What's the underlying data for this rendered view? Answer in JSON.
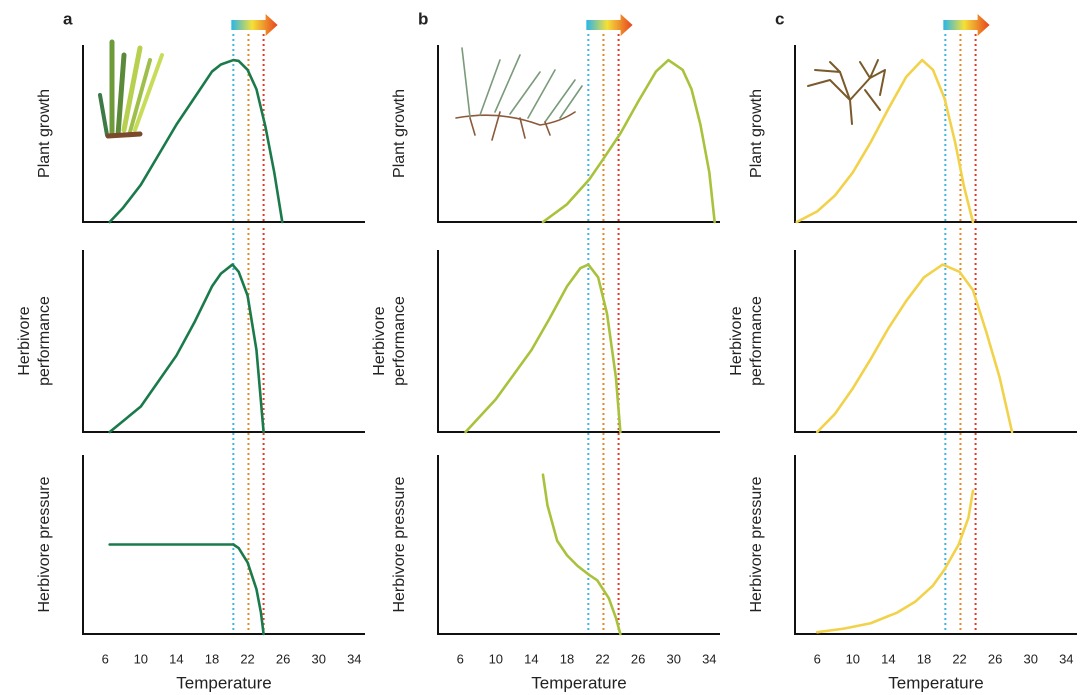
{
  "chart_data": [
    {
      "type": "line",
      "panel_label": "a",
      "ylabel": [
        "Plant growth"
      ],
      "xlim": [
        3.5,
        35.2
      ],
      "ylim": [
        0,
        100
      ],
      "color": "#1a7a4a",
      "reference_lines": [
        {
          "value": 20.4,
          "color": "#3fb4e0"
        },
        {
          "value": 22.1,
          "color": "#e08a2a"
        },
        {
          "value": 23.8,
          "color": "#e03a2a"
        }
      ],
      "x": [
        6.5,
        8,
        10,
        12,
        14,
        16,
        18,
        19,
        20.4,
        21,
        22,
        23,
        24,
        25,
        25.9
      ],
      "values": [
        0,
        8,
        21,
        38,
        55,
        70,
        85,
        89,
        91.5,
        91,
        86,
        75,
        54,
        28,
        0
      ]
    },
    {
      "type": "line",
      "ylabel": [
        "Herbivore",
        "performance"
      ],
      "xlim": [
        3.5,
        35.2
      ],
      "ylim": [
        0,
        100
      ],
      "color": "#1a7a4a",
      "reference_lines": [
        {
          "value": 20.4,
          "color": "#3fb4e0"
        },
        {
          "value": 22.1,
          "color": "#e08a2a"
        },
        {
          "value": 23.8,
          "color": "#e03a2a"
        }
      ],
      "x": [
        6.5,
        10,
        14,
        16,
        18,
        19,
        20.3,
        21,
        22,
        23,
        23.8
      ],
      "values": [
        0,
        14,
        42,
        60,
        80,
        87,
        92,
        88,
        75,
        45,
        0
      ]
    },
    {
      "type": "line",
      "ylabel": [
        "Herbivore pressure"
      ],
      "xlabel": "Temperature",
      "xticks": [
        6,
        10,
        14,
        18,
        22,
        26,
        30,
        34
      ],
      "xlim": [
        3.5,
        35.2
      ],
      "ylim": [
        0,
        100
      ],
      "color": "#1a7a4a",
      "reference_lines": [
        {
          "value": 20.4,
          "color": "#3fb4e0"
        },
        {
          "value": 22.1,
          "color": "#e08a2a"
        },
        {
          "value": 23.8,
          "color": "#e03a2a"
        }
      ],
      "x": [
        6.5,
        20.4,
        21,
        22,
        23,
        23.5,
        23.8
      ],
      "values": [
        50,
        50,
        48,
        40,
        25,
        12,
        0
      ]
    },
    {
      "type": "line",
      "panel_label": "b",
      "ylabel": [
        "Plant growth"
      ],
      "xlim": [
        3.5,
        35.2
      ],
      "ylim": [
        0,
        100
      ],
      "color": "#a8c23c",
      "reference_lines": [
        {
          "value": 20.4,
          "color": "#3fb4e0"
        },
        {
          "value": 22.1,
          "color": "#e08a2a"
        },
        {
          "value": 23.8,
          "color": "#e03a2a"
        }
      ],
      "x": [
        15.3,
        18,
        20.5,
        22,
        24,
        26,
        28,
        29.4,
        31,
        32,
        33,
        34,
        34.6
      ],
      "values": [
        0,
        10,
        24,
        35,
        50,
        68,
        85,
        91.5,
        86,
        75,
        55,
        28,
        0
      ]
    },
    {
      "type": "line",
      "ylabel": [
        "Herbivore",
        "performance"
      ],
      "xlim": [
        3.5,
        35.2
      ],
      "ylim": [
        0,
        100
      ],
      "color": "#a8c23c",
      "reference_lines": [
        {
          "value": 20.4,
          "color": "#3fb4e0"
        },
        {
          "value": 22.1,
          "color": "#e08a2a"
        },
        {
          "value": 23.8,
          "color": "#e03a2a"
        }
      ],
      "x": [
        6.6,
        10,
        14,
        16,
        18,
        19.5,
        20.4,
        21.5,
        22.5,
        23.5,
        24
      ],
      "values": [
        0,
        18,
        45,
        62,
        80,
        90,
        92,
        85,
        65,
        30,
        0
      ]
    },
    {
      "type": "line",
      "ylabel": [
        "Herbivore pressure"
      ],
      "xlabel": "Temperature",
      "xticks": [
        6,
        10,
        14,
        18,
        22,
        26,
        30,
        34
      ],
      "xlim": [
        3.5,
        35.2
      ],
      "ylim": [
        0,
        100
      ],
      "color": "#a8c23c",
      "reference_lines": [
        {
          "value": 20.4,
          "color": "#3fb4e0"
        },
        {
          "value": 22.1,
          "color": "#e08a2a"
        },
        {
          "value": 23.8,
          "color": "#e03a2a"
        }
      ],
      "x": [
        15.3,
        15.8,
        16.9,
        18,
        19.2,
        20.5,
        21.4,
        22.7,
        23.5,
        24
      ],
      "values": [
        89,
        72,
        52,
        44,
        38,
        33,
        30,
        20,
        9,
        0
      ]
    },
    {
      "type": "line",
      "panel_label": "c",
      "ylabel": [
        "Plant growth"
      ],
      "xlim": [
        3.5,
        35.2
      ],
      "ylim": [
        0,
        100
      ],
      "color": "#f2d24a",
      "reference_lines": [
        {
          "value": 20.4,
          "color": "#3fb4e0"
        },
        {
          "value": 22.1,
          "color": "#e08a2a"
        },
        {
          "value": 23.8,
          "color": "#e03a2a"
        }
      ],
      "x": [
        3.7,
        6,
        8,
        10,
        12,
        14,
        16,
        17.8,
        19,
        20.3,
        21.5,
        22.5,
        23.5
      ],
      "values": [
        0,
        6,
        15,
        28,
        45,
        64,
        82,
        91.5,
        86,
        70,
        45,
        20,
        0
      ]
    },
    {
      "type": "line",
      "ylabel": [
        "Herbivore",
        "performance"
      ],
      "xlim": [
        3.5,
        35.2
      ],
      "ylim": [
        0,
        100
      ],
      "color": "#f2d24a",
      "reference_lines": [
        {
          "value": 20.4,
          "color": "#3fb4e0"
        },
        {
          "value": 22.1,
          "color": "#e08a2a"
        },
        {
          "value": 23.8,
          "color": "#e03a2a"
        }
      ],
      "x": [
        6,
        8,
        10,
        12,
        14,
        16,
        18,
        20.1,
        22,
        23.5,
        25,
        26.5,
        27.9
      ],
      "values": [
        0,
        10,
        24,
        40,
        57,
        72,
        85,
        92,
        88,
        78,
        55,
        30,
        0
      ]
    },
    {
      "type": "line",
      "ylabel": [
        "Herbivore pressure"
      ],
      "xlabel": "Temperature",
      "xticks": [
        6,
        10,
        14,
        18,
        22,
        26,
        30,
        34
      ],
      "xlim": [
        3.5,
        35.2
      ],
      "ylim": [
        0,
        100
      ],
      "color": "#f2d24a",
      "reference_lines": [
        {
          "value": 20.4,
          "color": "#3fb4e0"
        },
        {
          "value": 22.1,
          "color": "#e08a2a"
        },
        {
          "value": 23.8,
          "color": "#e03a2a"
        }
      ],
      "x": [
        6,
        9,
        12,
        15,
        17,
        19,
        20.3,
        21.9,
        23,
        23.5
      ],
      "values": [
        1,
        3,
        6,
        12,
        18,
        27,
        36,
        50,
        65,
        80
      ]
    }
  ]
}
